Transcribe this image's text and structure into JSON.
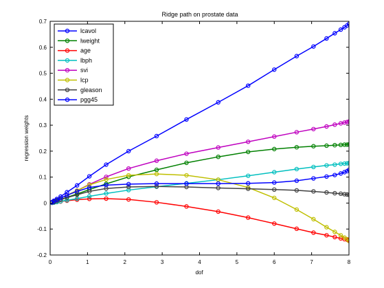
{
  "chart_data": {
    "type": "line",
    "title": "Ridge path on prostate data",
    "xlabel": "dof",
    "ylabel": "regression weights",
    "xlim": [
      0,
      8
    ],
    "ylim": [
      -0.2,
      0.7
    ],
    "xticks": [
      0,
      1,
      2,
      3,
      4,
      5,
      6,
      7,
      8
    ],
    "yticks": [
      -0.2,
      -0.1,
      0,
      0.1,
      0.2,
      0.3,
      0.4,
      0.5,
      0.6,
      0.7
    ],
    "grid": false,
    "legend_position": "top-left",
    "x": [
      0.05,
      0.1,
      0.18,
      0.28,
      0.45,
      0.72,
      1.05,
      1.5,
      2.1,
      2.85,
      3.65,
      4.5,
      5.3,
      6.0,
      6.6,
      7.05,
      7.4,
      7.62,
      7.78,
      7.88,
      7.95,
      8.0
    ],
    "series": [
      {
        "name": "lcavol",
        "color": "#0000ff",
        "values": [
          0.004,
          0.009,
          0.016,
          0.025,
          0.042,
          0.068,
          0.103,
          0.148,
          0.2,
          0.258,
          0.322,
          0.388,
          0.452,
          0.514,
          0.566,
          0.603,
          0.634,
          0.654,
          0.668,
          0.677,
          0.684,
          0.69
        ]
      },
      {
        "name": "lweight",
        "color": "#008000",
        "values": [
          0.002,
          0.005,
          0.009,
          0.014,
          0.022,
          0.035,
          0.052,
          0.074,
          0.101,
          0.128,
          0.155,
          0.178,
          0.197,
          0.208,
          0.215,
          0.219,
          0.221,
          0.223,
          0.224,
          0.225,
          0.225,
          0.226
        ]
      },
      {
        "name": "age",
        "color": "#ff0000",
        "values": [
          0.001,
          0.002,
          0.004,
          0.006,
          0.009,
          0.013,
          0.016,
          0.017,
          0.014,
          0.003,
          -0.013,
          -0.033,
          -0.056,
          -0.079,
          -0.099,
          -0.114,
          -0.124,
          -0.131,
          -0.136,
          -0.139,
          -0.141,
          -0.143
        ]
      },
      {
        "name": "lbph",
        "color": "#00bfbf",
        "values": [
          0.001,
          0.002,
          0.004,
          0.007,
          0.011,
          0.017,
          0.026,
          0.037,
          0.05,
          0.063,
          0.076,
          0.09,
          0.105,
          0.119,
          0.131,
          0.139,
          0.145,
          0.148,
          0.151,
          0.152,
          0.153,
          0.154
        ]
      },
      {
        "name": "svi",
        "color": "#bf00bf",
        "values": [
          0.003,
          0.007,
          0.012,
          0.019,
          0.03,
          0.048,
          0.072,
          0.101,
          0.133,
          0.163,
          0.19,
          0.214,
          0.236,
          0.256,
          0.273,
          0.285,
          0.295,
          0.302,
          0.307,
          0.31,
          0.312,
          0.314
        ]
      },
      {
        "name": "lcp",
        "color": "#bfbf00",
        "values": [
          0.003,
          0.006,
          0.012,
          0.019,
          0.03,
          0.048,
          0.07,
          0.091,
          0.107,
          0.112,
          0.107,
          0.09,
          0.06,
          0.02,
          -0.025,
          -0.062,
          -0.093,
          -0.111,
          -0.124,
          -0.133,
          -0.139,
          -0.146
        ]
      },
      {
        "name": "gleason",
        "color": "#404040",
        "values": [
          0.002,
          0.004,
          0.008,
          0.013,
          0.021,
          0.032,
          0.045,
          0.056,
          0.062,
          0.064,
          0.062,
          0.058,
          0.055,
          0.052,
          0.049,
          0.045,
          0.041,
          0.038,
          0.036,
          0.034,
          0.033,
          0.032
        ]
      },
      {
        "name": "pgg45",
        "color": "#0000ff",
        "values": [
          0.003,
          0.007,
          0.012,
          0.019,
          0.03,
          0.045,
          0.06,
          0.069,
          0.073,
          0.075,
          0.075,
          0.075,
          0.076,
          0.079,
          0.086,
          0.095,
          0.102,
          0.108,
          0.114,
          0.119,
          0.123,
          0.128
        ]
      }
    ]
  }
}
